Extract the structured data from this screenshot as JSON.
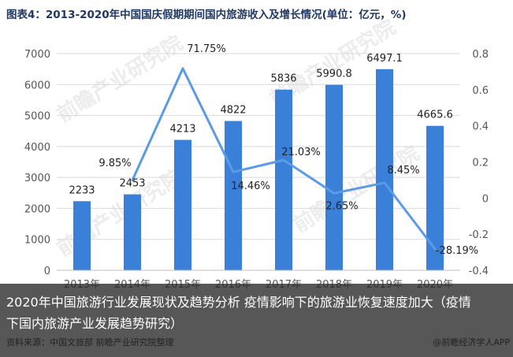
{
  "page": {
    "title": "图表4：2013-2020年中国国庆假期期间国内旅游收入及增长情况(单位：亿元，%)",
    "overlay_text": "2020年中国旅游行业发展现状及趋势分析 疫情影响下的旅游业恢复速度加大（疫情下国内旅游产业发展趋势研究）",
    "source": "资料来源：中国文旅部 前瞻产业研究院整理",
    "credit": "@前瞻经济学人APP",
    "watermark": "前瞻产业研究院"
  },
  "colors": {
    "bar": "#3a7fd8",
    "line": "#5b9ae6",
    "axis_text": "#555555",
    "grid": "#d9d9d9"
  },
  "chart_data": {
    "type": "bar",
    "categories": [
      "2013年",
      "2014年",
      "2015年",
      "2016年",
      "2017年",
      "2018年",
      "2019年",
      "2020年"
    ],
    "bar_values": [
      2233,
      2453,
      4213,
      4822,
      5836,
      5990.8,
      6497.1,
      4665.6
    ],
    "bar_labels": [
      "2233",
      "2453",
      "4213",
      "4822",
      "5836",
      "5990.8",
      "6497.1",
      "4665.6"
    ],
    "line_values": [
      9.85,
      71.75,
      14.46,
      21.03,
      2.65,
      8.45,
      -28.19
    ],
    "line_start_index": 1,
    "line_labels": [
      "9.85%",
      "71.75%",
      "14.46%",
      "21.03%",
      "2.65%",
      "8.45%",
      "-28.19%"
    ],
    "y_left": {
      "min": 0,
      "max": 7000,
      "step": 1000,
      "ticks": [
        "0",
        "1000",
        "2000",
        "3000",
        "4000",
        "5000",
        "6000",
        "7000"
      ]
    },
    "y_right": {
      "min": -0.4,
      "max": 0.8,
      "step": 0.2,
      "ticks": [
        "-0.4",
        "-0.2",
        "0",
        "0.2",
        "0.4",
        "0.6",
        "0.8"
      ]
    },
    "title": "",
    "xlabel": "",
    "ylabel": "",
    "grid": true
  }
}
